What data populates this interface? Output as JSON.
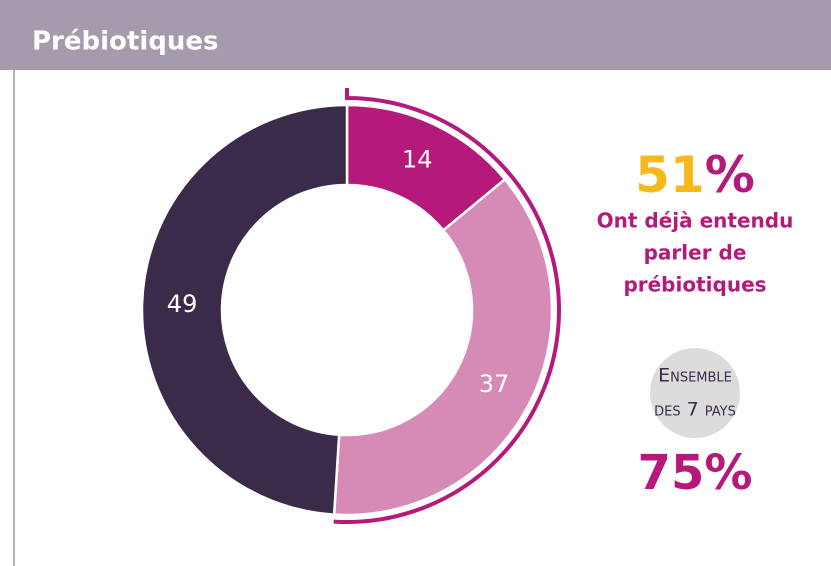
{
  "chart_data": {
    "type": "donut",
    "title": "Prébiotiques",
    "values": [
      14,
      37,
      49
    ],
    "colors": [
      "#b5197a",
      "#d58bb5",
      "#3b2b4b"
    ],
    "headline": {
      "value": 51,
      "unit": "%"
    },
    "headline_text": [
      "Ont déjà entendu",
      "parler de",
      "prébiotiques"
    ],
    "overall_label": [
      "Ensemble",
      "des 7 pays"
    ],
    "overall": {
      "value": 75,
      "unit": "%"
    }
  }
}
